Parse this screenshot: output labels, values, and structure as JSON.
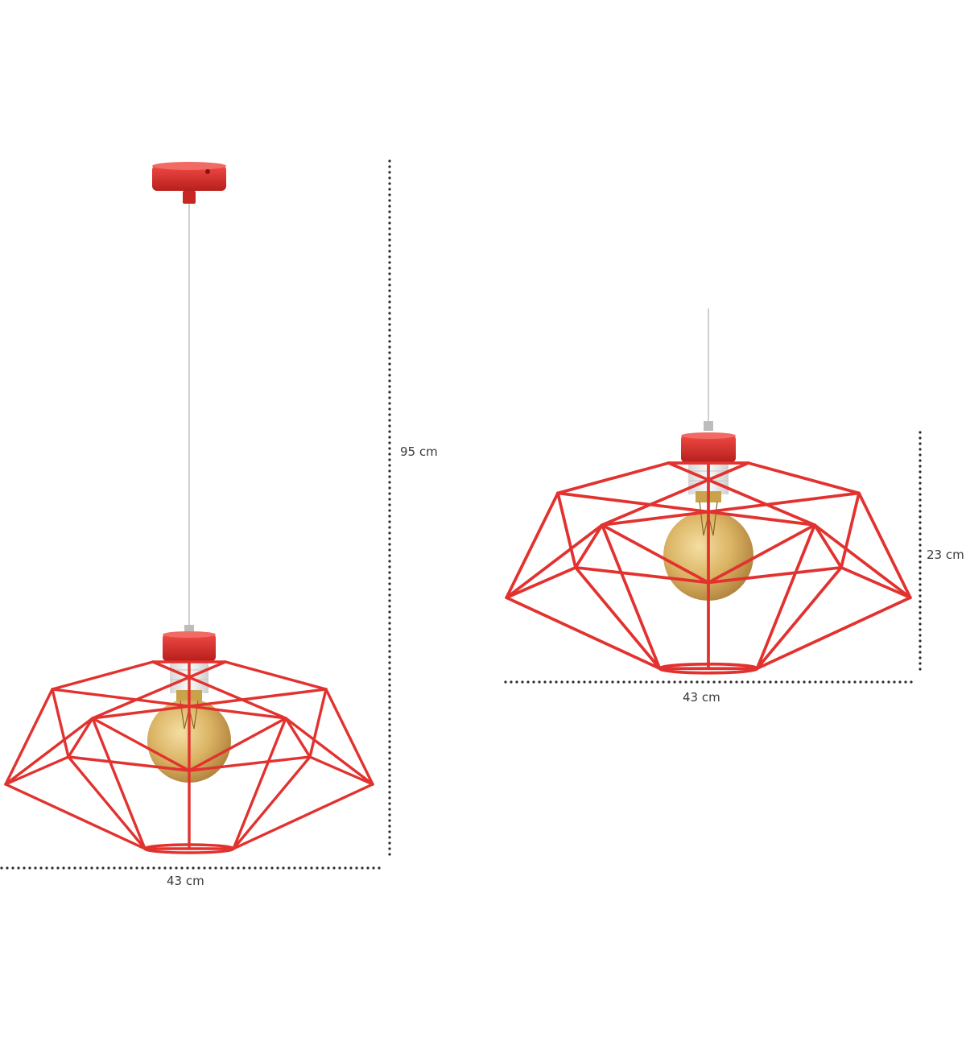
{
  "dimensions": {
    "full_height": "95 cm",
    "full_width": "43 cm",
    "shade_height": "23 cm",
    "shade_width": "43 cm"
  },
  "colors": {
    "frame": "#e2322f",
    "frame_dark": "#b8201e",
    "canopy": "#dd2b27",
    "cable": "#c9c9c9",
    "bulb_glass": "#d9b25a",
    "socket": "#efefef",
    "dots": "#2b2b2b"
  },
  "icons": {
    "lamp_full": "pendant-lamp-with-canopy-icon",
    "lamp_shade": "pendant-lamp-shade-icon"
  }
}
